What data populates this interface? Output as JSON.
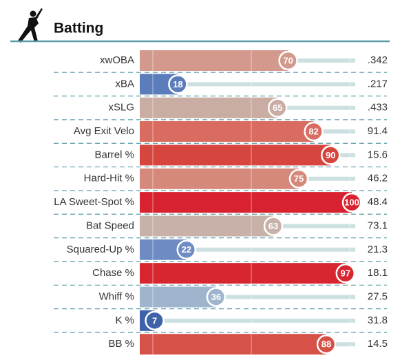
{
  "chart_data": {
    "type": "percentile-bar",
    "title": "Batting",
    "categories": [
      "xwOBA",
      "xBA",
      "xSLG",
      "Avg Exit Velo",
      "Barrel %",
      "Hard-Hit %",
      "LA Sweet-Spot %",
      "Bat Speed",
      "Squared-Up %",
      "Chase %",
      "Whiff %",
      "K %",
      "BB %"
    ],
    "values": [
      70,
      18,
      65,
      82,
      90,
      75,
      100,
      63,
      22,
      97,
      36,
      7,
      88
    ],
    "colors": [
      "#d3998c",
      "#5b7dbb",
      "#c9aca2",
      "#d96b60",
      "#d6463f",
      "#d4897b",
      "#d8222f",
      "#c8b1a9",
      "#6e8bc3",
      "#d82630",
      "#9fb5cd",
      "#3f63ab",
      "#d65148"
    ],
    "stats": [
      ".342",
      ".217",
      ".433",
      "91.4",
      "15.6",
      "46.2",
      "48.4",
      "73.1",
      "21.3",
      "18.1",
      "27.5",
      "31.8",
      "14.5"
    ],
    "xlim": [
      0,
      100
    ]
  }
}
